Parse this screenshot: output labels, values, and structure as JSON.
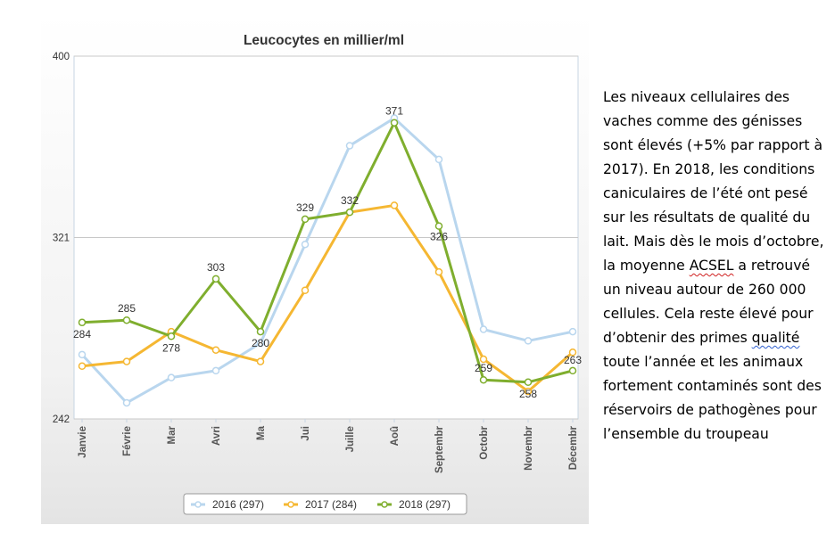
{
  "chart_data": {
    "type": "line",
    "title": "Leucocytes en millier/ml",
    "categories": [
      "Janvie",
      "Févrie",
      "Mar",
      "Avri",
      "Ma",
      "Jui",
      "Juille",
      "Aoû",
      "Septembr",
      "Octobr",
      "Novembr",
      "Décembr"
    ],
    "ylim": [
      242,
      400
    ],
    "yticks": [
      242,
      321,
      400
    ],
    "series": [
      {
        "name": "2016 (297)",
        "color": "#b9d6ee",
        "values": [
          270,
          249,
          260,
          263,
          275,
          318,
          361,
          373,
          355,
          281,
          276,
          280
        ],
        "labels": []
      },
      {
        "name": "2017 (284)",
        "color": "#f5b732",
        "values": [
          265,
          267,
          280,
          272,
          267,
          298,
          332,
          335,
          306,
          268,
          254,
          271
        ],
        "labels": []
      },
      {
        "name": "2018 (297)",
        "color": "#7fae2e",
        "values": [
          284,
          285,
          278,
          303,
          280,
          329,
          332,
          371,
          326,
          259,
          258,
          263
        ],
        "labels": [
          "284",
          "285",
          "278",
          "303",
          "280",
          "329",
          "332",
          "371",
          "326",
          "259",
          "258",
          "263"
        ]
      }
    ],
    "grid": "horizontal",
    "legend": "bottom"
  },
  "side_text": {
    "p1": "Les niveaux cellulaires des vaches comme des génisses sont élevés (+5% par rapport à 2017).  En 2018, les conditions caniculaires de l’été ont pesé sur les résultats de qualité du lait. Mais dès le mois d’octobre, la moyenne ",
    "acsel": "ACSEL",
    "p2": " a retrouvé un niveau autour de 260 000 cellules. Cela reste élevé pour d’obtenir des primes ",
    "qualite": "qualité",
    "p3": " toute l’année et les animaux fortement contaminés sont des réservoirs de pathogènes pour l’ensemble du troupeau"
  }
}
